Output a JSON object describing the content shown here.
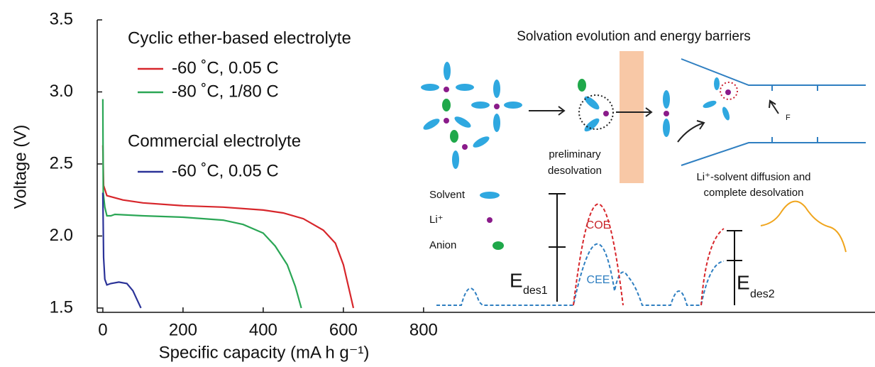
{
  "chart_data": {
    "type": "line",
    "xlabel": "Specific capacity (mA h g⁻¹)",
    "ylabel": "Voltage (V)",
    "xlim": [
      -14,
      1926
    ],
    "ylim": [
      1.47,
      3.5
    ],
    "xticks": [
      0,
      200,
      400,
      600,
      800
    ],
    "yticks": [
      1.5,
      {
        "value": 2,
        "label": "2.0"
      },
      2.5,
      {
        "value": 3,
        "label": "3.0"
      },
      3.5
    ],
    "legend_groups": [
      "Cyclic ether-based electrolyte",
      "Commercial electrolyte"
    ],
    "series": [
      {
        "name": "-60 ˚C, 0.05 C",
        "color": "#d7262b",
        "group": 0,
        "x": [
          0,
          2,
          10,
          50,
          100,
          200,
          300,
          400,
          450,
          500,
          550,
          580,
          600,
          615,
          625
        ],
        "values": [
          2.63,
          2.35,
          2.28,
          2.25,
          2.23,
          2.21,
          2.2,
          2.18,
          2.16,
          2.12,
          2.04,
          1.95,
          1.8,
          1.62,
          1.5
        ]
      },
      {
        "name": "-80 ˚C, 1/80 C",
        "color": "#2aa655",
        "group": 0,
        "x": [
          0,
          1,
          5,
          10,
          20,
          30,
          100,
          200,
          300,
          350,
          400,
          430,
          460,
          480,
          495
        ],
        "values": [
          2.95,
          2.3,
          2.2,
          2.14,
          2.14,
          2.15,
          2.14,
          2.13,
          2.11,
          2.08,
          2.02,
          1.93,
          1.8,
          1.65,
          1.5
        ]
      },
      {
        "name": "-60 ˚C, 0.05 C",
        "color": "#2b3398",
        "group": 1,
        "x": [
          0,
          2,
          5,
          10,
          20,
          40,
          60,
          75,
          85,
          95
        ],
        "values": [
          2.3,
          1.85,
          1.7,
          1.66,
          1.67,
          1.68,
          1.67,
          1.62,
          1.56,
          1.5
        ]
      }
    ],
    "annotations": {
      "title": "Solvation evolution and energy barriers",
      "preliminary": "preliminary",
      "desolvation": "desolvation",
      "diffusion": "Li⁺-solvent diffusion and",
      "complete": "complete desolvation",
      "solvent": "Solvent",
      "li": "Li⁺",
      "anion": "Anion",
      "coe": "COE",
      "cee": "CEE",
      "force": "F",
      "e1": "E",
      "e1sub": "des1",
      "e2": "E",
      "e2sub": "des2"
    }
  }
}
